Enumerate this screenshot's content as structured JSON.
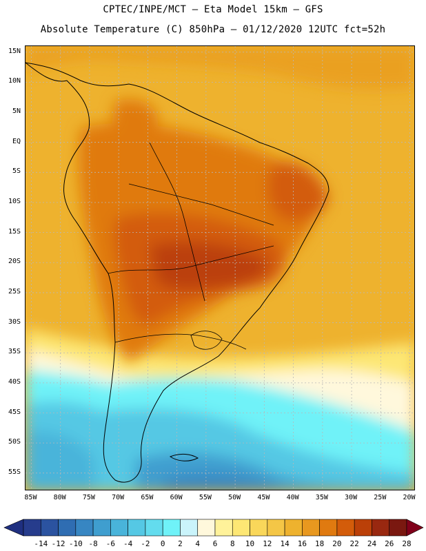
{
  "title_line1": "CPTEC/INPE/MCT –  Eta Model 15km – GFS",
  "title_line2": "Absolute Temperature (C) 850hPa – 01/12/2020 12UTC fct=52h",
  "map": {
    "lon_range": [
      -86,
      -19
    ],
    "lat_range": [
      16,
      -58
    ],
    "lat_labels": [
      {
        "text": "15N",
        "lat": 15
      },
      {
        "text": "10N",
        "lat": 10
      },
      {
        "text": "5N",
        "lat": 5
      },
      {
        "text": "EQ",
        "lat": 0
      },
      {
        "text": "5S",
        "lat": -5
      },
      {
        "text": "10S",
        "lat": -10
      },
      {
        "text": "15S",
        "lat": -15
      },
      {
        "text": "20S",
        "lat": -20
      },
      {
        "text": "25S",
        "lat": -25
      },
      {
        "text": "30S",
        "lat": -30
      },
      {
        "text": "35S",
        "lat": -35
      },
      {
        "text": "40S",
        "lat": -40
      },
      {
        "text": "45S",
        "lat": -45
      },
      {
        "text": "50S",
        "lat": -50
      },
      {
        "text": "55S",
        "lat": -55
      }
    ],
    "lon_labels": [
      {
        "text": "85W",
        "lon": -85
      },
      {
        "text": "80W",
        "lon": -80
      },
      {
        "text": "75W",
        "lon": -75
      },
      {
        "text": "70W",
        "lon": -70
      },
      {
        "text": "65W",
        "lon": -65
      },
      {
        "text": "60W",
        "lon": -60
      },
      {
        "text": "55W",
        "lon": -55
      },
      {
        "text": "50W",
        "lon": -50
      },
      {
        "text": "45W",
        "lon": -45
      },
      {
        "text": "40W",
        "lon": -40
      },
      {
        "text": "35W",
        "lon": -35
      },
      {
        "text": "30W",
        "lon": -30
      },
      {
        "text": "25W",
        "lon": -25
      },
      {
        "text": "20W",
        "lon": -20
      }
    ]
  },
  "colorbar": {
    "labels": [
      "-14",
      "-12",
      "-10",
      "-8",
      "-6",
      "-4",
      "-2",
      "0",
      "2",
      "4",
      "6",
      "8",
      "10",
      "12",
      "14",
      "16",
      "18",
      "20",
      "22",
      "24",
      "26",
      "28"
    ],
    "under_color": "#1f2f80",
    "over_color": "#80001a",
    "colors": [
      "#263c8c",
      "#2b53a0",
      "#2f6db2",
      "#3786c2",
      "#3f9ecf",
      "#49b4da",
      "#55c8e4",
      "#63dcee",
      "#6ff2f8",
      "#caf4fb",
      "#fff8dc",
      "#fff29a",
      "#fde774",
      "#f9d75a",
      "#f4c646",
      "#eeb22e",
      "#e8981f",
      "#e07a10",
      "#d35c0a",
      "#bb4008",
      "#992810",
      "#7a1810"
    ]
  }
}
